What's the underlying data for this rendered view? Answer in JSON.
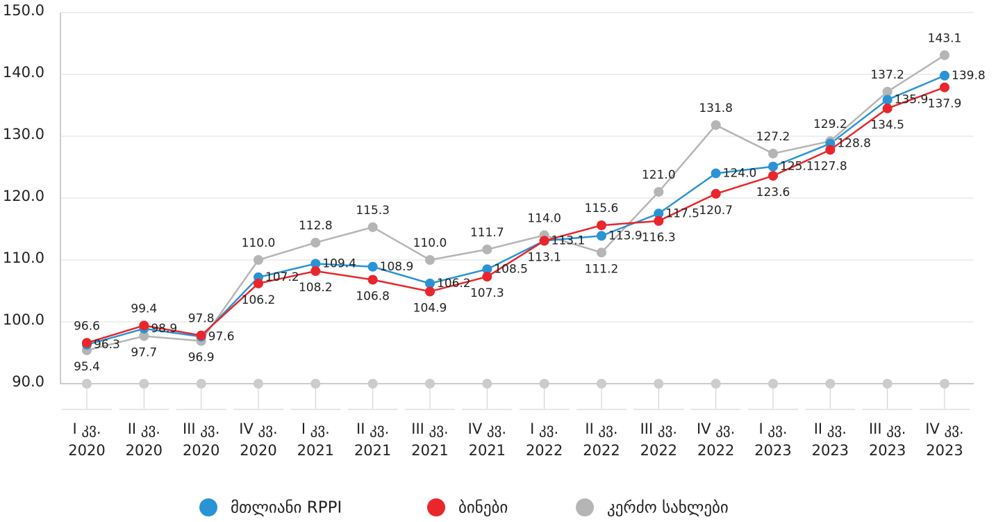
{
  "chart_data": {
    "type": "line",
    "categories": [
      [
        "I კვ.",
        "2020"
      ],
      [
        "II კვ.",
        "2020"
      ],
      [
        "III კვ.",
        "2020"
      ],
      [
        "IV კვ.",
        "2020"
      ],
      [
        "I კვ.",
        "2021"
      ],
      [
        "II კვ.",
        "2021"
      ],
      [
        "III კვ.",
        "2021"
      ],
      [
        "IV კვ.",
        "2021"
      ],
      [
        "I კვ.",
        "2022"
      ],
      [
        "II კვ.",
        "2022"
      ],
      [
        "III კვ.",
        "2022"
      ],
      [
        "IV კვ.",
        "2022"
      ],
      [
        "I კვ.",
        "2023"
      ],
      [
        "II კვ.",
        "2023"
      ],
      [
        "III კვ.",
        "2023"
      ],
      [
        "IV კვ.",
        "2023"
      ]
    ],
    "series": [
      {
        "name": "მთლიანი RPPI",
        "color": "#2a93d5",
        "values": [
          96.3,
          98.9,
          97.6,
          107.2,
          109.4,
          108.9,
          106.2,
          108.5,
          113.1,
          113.9,
          117.5,
          124.0,
          125.1,
          128.8,
          135.9,
          139.8
        ],
        "value_labels": [
          "96.3",
          "98.9",
          "97.6",
          "107.2",
          "109.4",
          "108.9",
          "106.2",
          "108.5",
          "113.1",
          "113.9",
          "117.5",
          "124.0",
          "125.1",
          "128.8",
          "135.9",
          "139.8"
        ]
      },
      {
        "name": "ბინები",
        "color": "#e8262c",
        "values": [
          96.6,
          99.4,
          97.8,
          106.2,
          108.2,
          106.8,
          104.9,
          107.3,
          113.1,
          115.6,
          116.3,
          120.7,
          123.6,
          127.8,
          134.5,
          137.9
        ],
        "value_labels": [
          "96.6",
          "99.4",
          "97.8",
          "106.2",
          "108.2",
          "106.8",
          "104.9",
          "107.3",
          "113.1",
          "115.6",
          "116.3",
          "120.7",
          "123.6",
          "127.8",
          "134.5",
          "137.9"
        ]
      },
      {
        "name": "კერძო სახლები",
        "color": "#b5b5b5",
        "values": [
          95.4,
          97.7,
          96.9,
          110.0,
          112.8,
          115.3,
          110.0,
          111.7,
          114.0,
          111.2,
          121.0,
          131.8,
          127.2,
          129.2,
          137.2,
          143.1
        ],
        "value_labels": [
          "95.4",
          "97.7",
          "96.9",
          "110.0",
          "112.8",
          "115.3",
          "110.0",
          "111.7",
          "114.0",
          "111.2",
          "121.0",
          "131.8",
          "127.2",
          "129.2",
          "137.2",
          "143.1"
        ]
      }
    ],
    "ylim": [
      90,
      150
    ],
    "yticks": [
      {
        "value": 90,
        "label": "90.0"
      },
      {
        "value": 100,
        "label": "100.0"
      },
      {
        "value": 110,
        "label": "110.0"
      },
      {
        "value": 120,
        "label": "120.0"
      },
      {
        "value": 130,
        "label": "130.0"
      },
      {
        "value": 140,
        "label": "140.0"
      },
      {
        "value": 150,
        "label": "150.0"
      }
    ],
    "grid": true,
    "legend": "bottom"
  }
}
